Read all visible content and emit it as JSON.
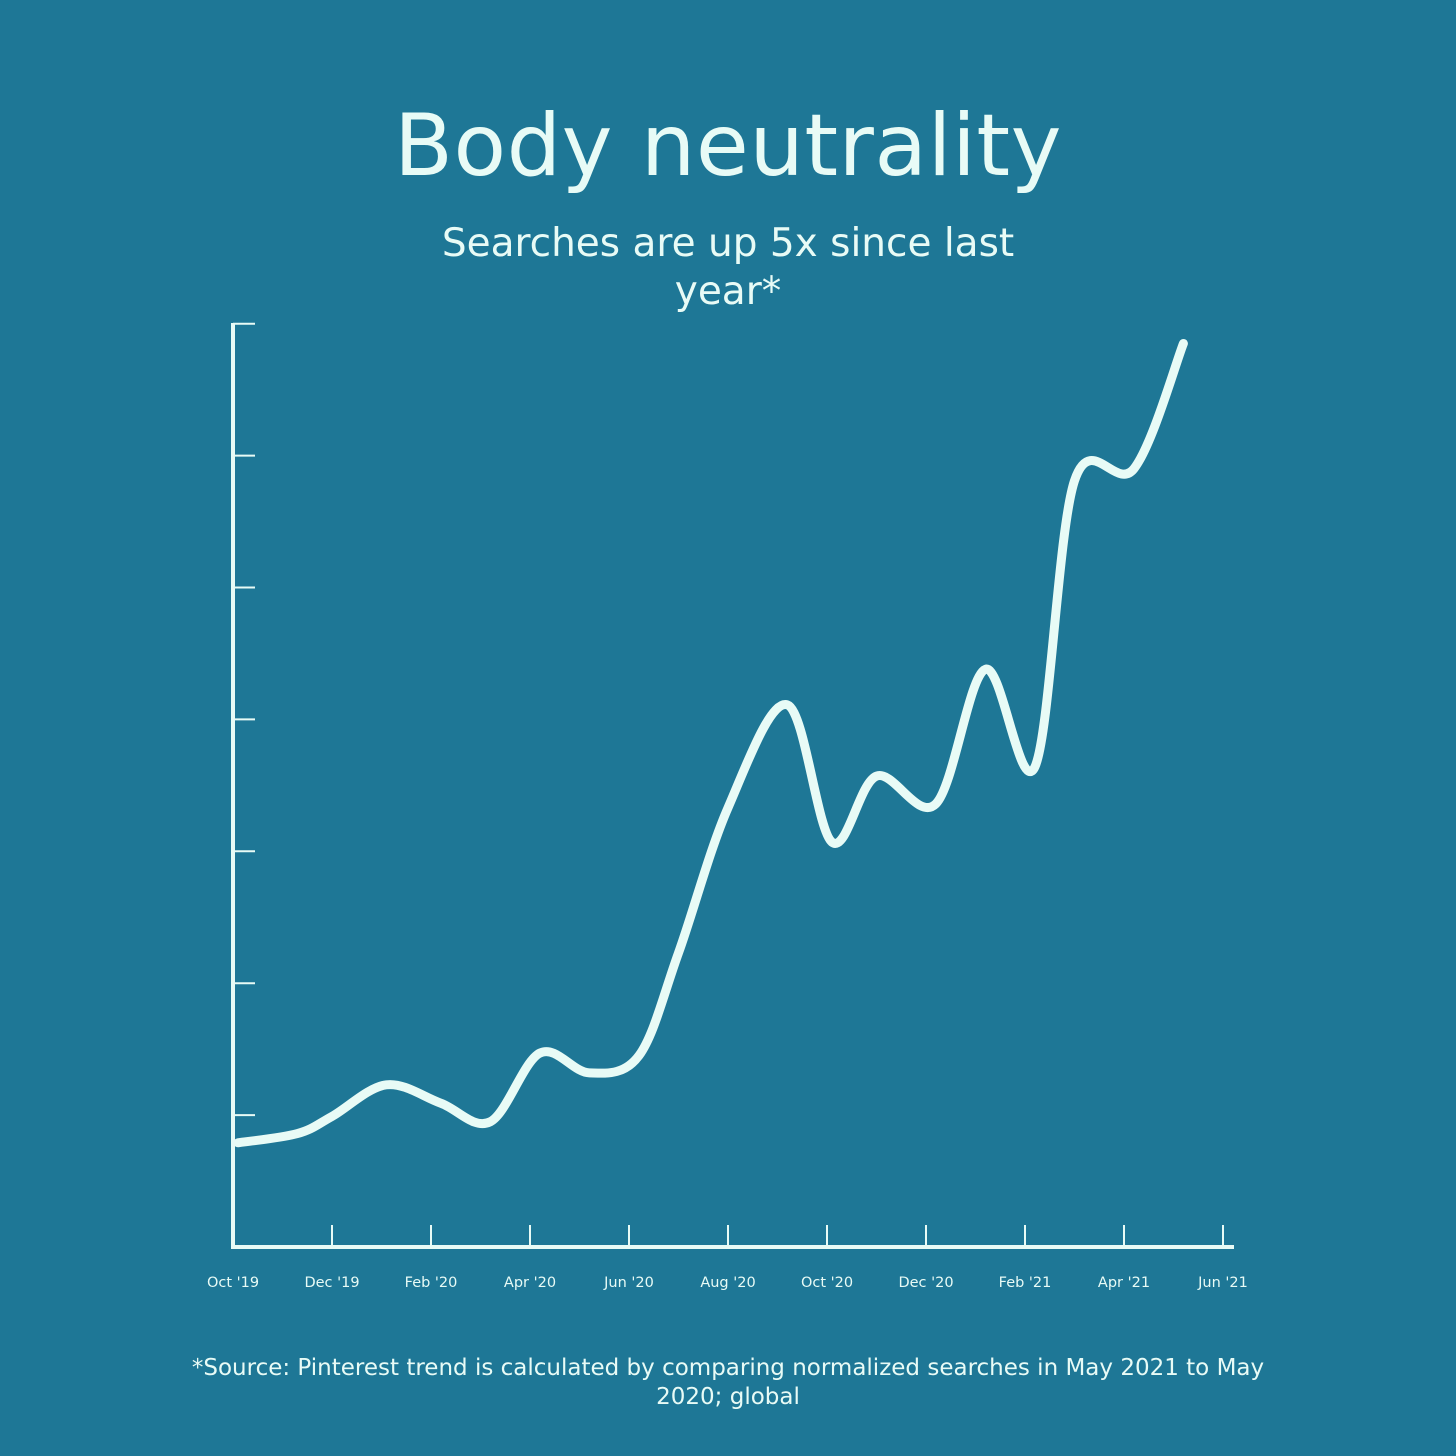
{
  "colors": {
    "background": "#1e7796",
    "foreground": "#e8fbf6"
  },
  "chart_data": {
    "type": "line",
    "title": "Body neutrality",
    "subtitle": "Searches are up 5x since last year*",
    "footnote": "*Source: Pinterest trend is calculated by comparing normalized searches in May 2021 to May 2020; global",
    "xlabel": "",
    "ylabel": "",
    "x_tick_labels": [
      "Oct '19",
      "Dec '19",
      "Feb '20",
      "Apr '20",
      "Jun '20",
      "Aug '20",
      "Oct '20",
      "Dec '20",
      "Feb '21",
      "Apr '21",
      "Jun '21"
    ],
    "x_range": [
      0,
      20
    ],
    "ylim": [
      0,
      7
    ],
    "y_ticks": [
      1,
      2,
      3,
      4,
      5,
      6,
      7
    ],
    "y_tick_labels_shown": false,
    "grid": false,
    "series": [
      {
        "values": [
          [
            0.1,
            0.79
          ],
          [
            1.3,
            0.86
          ],
          [
            2.0,
            0.99
          ],
          [
            3.1,
            1.23
          ],
          [
            4.2,
            1.09
          ],
          [
            5.2,
            0.95
          ],
          [
            6.2,
            1.47
          ],
          [
            7.2,
            1.32
          ],
          [
            8.2,
            1.45
          ],
          [
            9.0,
            2.23
          ],
          [
            10.0,
            3.33
          ],
          [
            11.2,
            4.11
          ],
          [
            12.1,
            3.07
          ],
          [
            13.0,
            3.57
          ],
          [
            14.2,
            3.36
          ],
          [
            15.2,
            4.38
          ],
          [
            16.2,
            3.64
          ],
          [
            17.0,
            5.81
          ],
          [
            18.2,
            5.9
          ],
          [
            19.2,
            6.85
          ]
        ]
      }
    ]
  }
}
